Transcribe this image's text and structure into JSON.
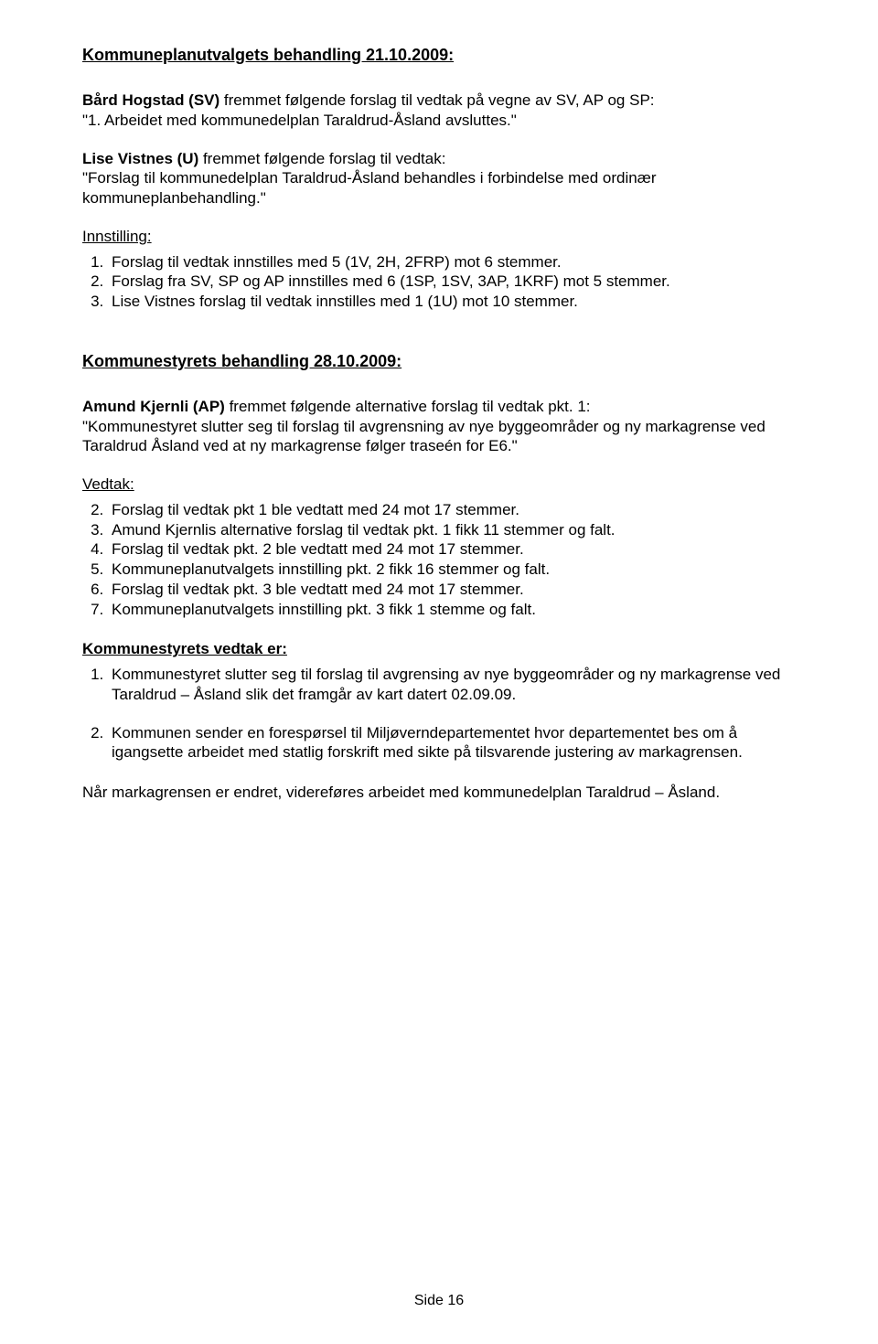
{
  "heading1": "Kommuneplanutvalgets behandling 21.10.2009:",
  "p1_lead": "Bård Hogstad (SV) ",
  "p1_rest": "fremmet følgende forslag til vedtak på vegne av SV, AP og SP:",
  "p1_line2": "\"1. Arbeidet med kommunedelplan Taraldrud-Åsland avsluttes.\"",
  "p2_lead": "Lise Vistnes (U) ",
  "p2_rest": "fremmet følgende forslag til vedtak:",
  "p2_line2": "\"Forslag til kommunedelplan Taraldrud-Åsland behandles i forbindelse med ordinær kommuneplanbehandling.\"",
  "innstilling_label": "Innstilling:",
  "innstilling_items": [
    "Forslag til vedtak innstilles med 5 (1V, 2H, 2FRP) mot 6 stemmer.",
    "Forslag fra SV, SP og AP innstilles med 6 (1SP, 1SV, 3AP, 1KRF) mot 5 stemmer.",
    "Lise Vistnes forslag til vedtak innstilles med 1 (1U) mot 10 stemmer."
  ],
  "heading2": "Kommunestyrets behandling 28.10.2009:",
  "p3_lead": "Amund Kjernli (AP) ",
  "p3_rest": "fremmet følgende alternative forslag til vedtak pkt. 1:",
  "p3_quote": "\"Kommunestyret slutter seg til forslag til avgrensning av nye byggeområder og ny markagrense ved Taraldrud Åsland ved at ny markagrense følger traseén for E6.\"",
  "vedtak_label": "Vedtak:",
  "vedtak_items": [
    "Forslag til vedtak pkt 1 ble vedtatt med 24 mot 17 stemmer.",
    "Amund Kjernlis alternative forslag til vedtak pkt. 1 fikk 11 stemmer og falt.",
    "Forslag til vedtak pkt. 2 ble vedtatt med 24 mot 17 stemmer.",
    "Kommuneplanutvalgets innstilling pkt. 2 fikk 16 stemmer og falt.",
    "Forslag til vedtak pkt. 3 ble vedtatt med 24 mot 17 stemmer.",
    "Kommuneplanutvalgets innstilling pkt. 3 fikk 1 stemme og falt."
  ],
  "vedtak_start": 2,
  "kvedtak_label": "Kommunestyrets vedtak er:",
  "kvedtak_items": [
    "Kommunestyret slutter seg til forslag til avgrensing av nye byggeområder og ny markagrense ved Taraldrud – Åsland slik det framgår av kart datert 02.09.09.",
    "Kommunen sender en forespørsel til Miljøverndepartementet hvor departementet bes om å igangsette arbeidet med statlig forskrift med sikte på tilsvarende justering av markagrensen."
  ],
  "closing": "Når markagrensen er endret, videreføres arbeidet med kommunedelplan Taraldrud – Åsland.",
  "footer": "Side 16"
}
